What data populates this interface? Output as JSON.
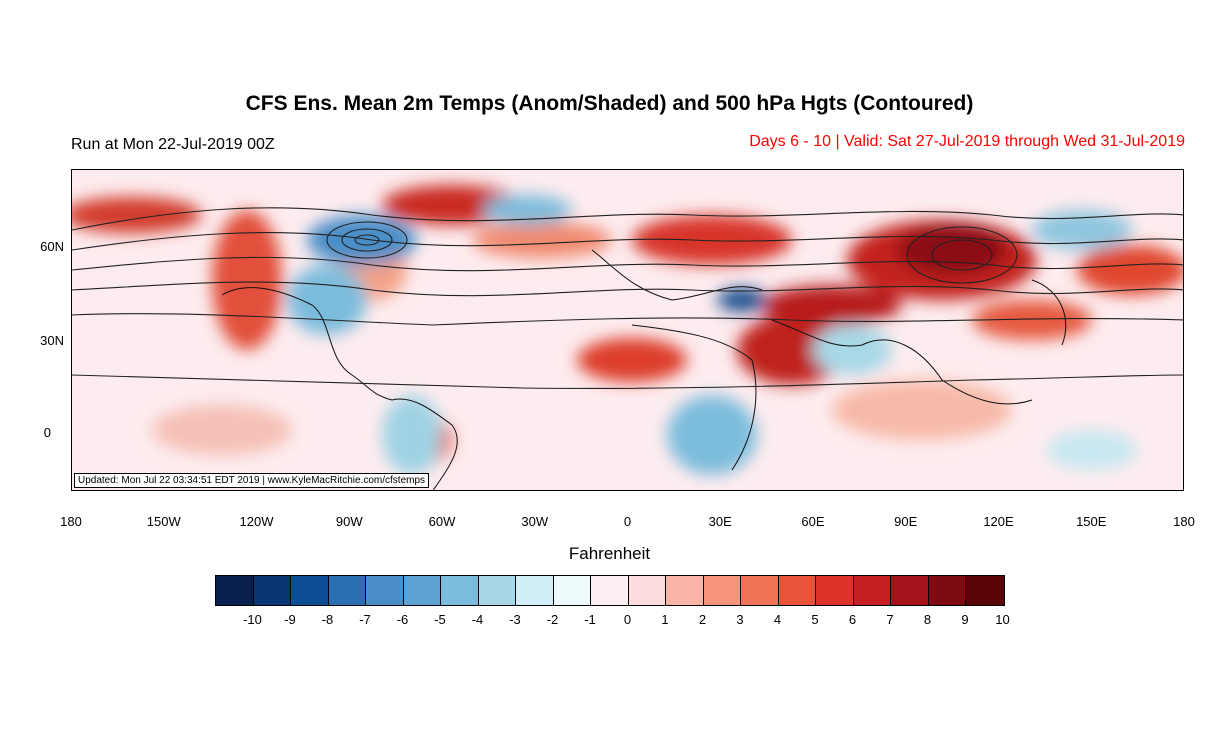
{
  "title": "CFS Ens. Mean 2m Temps (Anom/Shaded) and 500 hPa Hgts (Contoured)",
  "run_text": "Run at Mon 22-Jul-2019 00Z",
  "valid_text": "Days 6 - 10 | Valid: Sat 27-Jul-2019 through Wed 31-Jul-2019",
  "updated_text": "Updated: Mon Jul 22 03:34:51 EDT 2019 | www.KyleMacRitchie.com/cfstemps",
  "y_axis_labels": [
    "60N",
    "30N",
    "0"
  ],
  "x_axis_labels": [
    "180",
    "150W",
    "120W",
    "90W",
    "60W",
    "30W",
    "0",
    "30E",
    "60E",
    "90E",
    "120E",
    "150E",
    "180"
  ],
  "legend": {
    "unit_title": "Fahrenheit",
    "tick_labels": [
      "-10",
      "-9",
      "-8",
      "-7",
      "-6",
      "-5",
      "-4",
      "-3",
      "-2",
      "-1",
      "0",
      "1",
      "2",
      "3",
      "4",
      "5",
      "6",
      "7",
      "8",
      "9",
      "10"
    ],
    "colors": [
      "#08204d",
      "#0b3675",
      "#0d4f96",
      "#2a6fb4",
      "#4a8ec7",
      "#5ea2d2",
      "#7bbcdc",
      "#a8d8e6",
      "#d2eef6",
      "#eef9fc",
      "#fdeef1",
      "#fcdcdc",
      "#f9b6a6",
      "#f6957c",
      "#f07356",
      "#e9533a",
      "#dd3329",
      "#c71e24",
      "#a5131b",
      "#7d0b13",
      "#5a0609"
    ]
  }
}
